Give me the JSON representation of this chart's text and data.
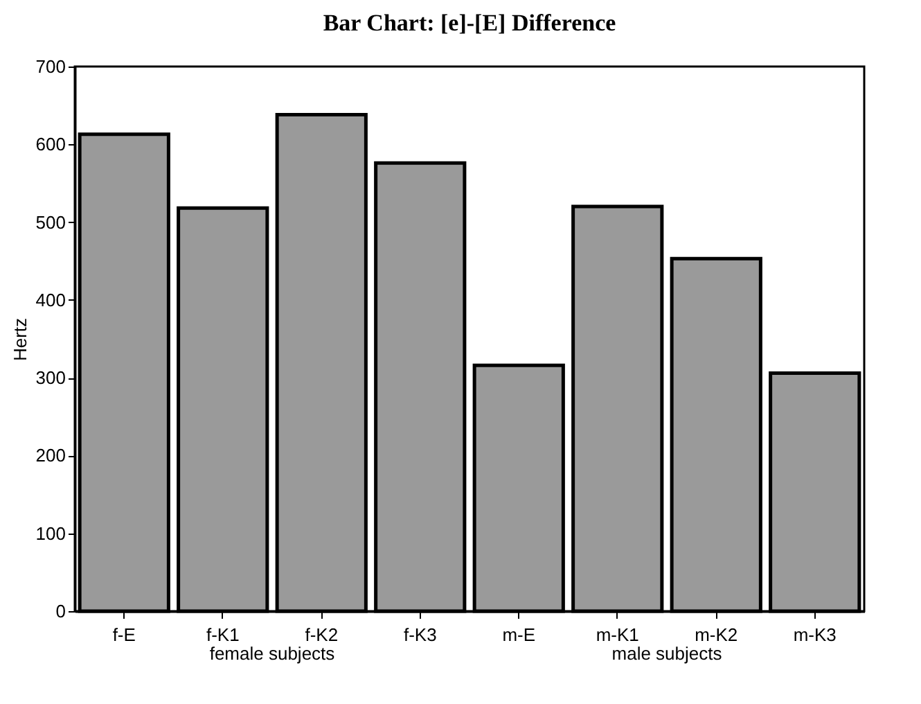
{
  "chart_data": {
    "type": "bar",
    "title": "Bar Chart: [e]-[E] Difference",
    "ylabel": "Hertz",
    "categories": [
      "f-E",
      "f-K1",
      "f-K2",
      "f-K3",
      "m-E",
      "m-K1",
      "m-K2",
      "m-K3"
    ],
    "values": [
      613,
      518,
      638,
      576,
      316,
      520,
      453,
      306
    ],
    "color": "#9a9a9a",
    "ylim": [
      0,
      700
    ],
    "yticks": [
      0,
      100,
      200,
      300,
      400,
      500,
      600,
      700
    ],
    "grid": false,
    "annotations": [
      "female subjects",
      "male subjects"
    ]
  }
}
